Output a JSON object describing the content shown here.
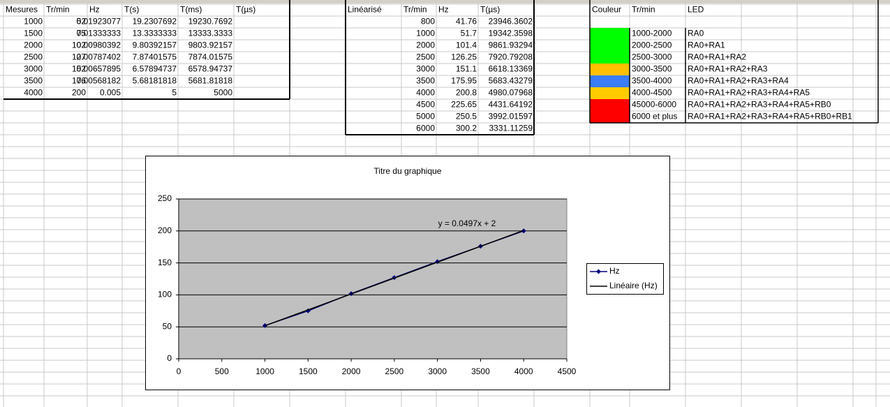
{
  "tables": [
    {
      "header": [
        "Mesures",
        "Tr/min",
        "Hz",
        "T(s)",
        "T(ms)",
        "T(µs)"
      ],
      "rows": [
        [
          "1000",
          "52",
          "0.01923077",
          "19.2307692",
          "19230.7692"
        ],
        [
          "1500",
          "75",
          "0.01333333",
          "13.3333333",
          "13333.3333"
        ],
        [
          "2000",
          "102",
          "0.00980392",
          "9.80392157",
          "9803.92157"
        ],
        [
          "2500",
          "127",
          "0.00787402",
          "7.87401575",
          "7874.01575"
        ],
        [
          "3000",
          "152",
          "0.00657895",
          "6.57894737",
          "6578.94737"
        ],
        [
          "3500",
          "176",
          "0.00568182",
          "5.68181818",
          "5681.81818"
        ],
        [
          "4000",
          "200",
          "0.005",
          "5",
          "5000"
        ]
      ]
    },
    {
      "header": [
        "Linéarisé",
        "Tr/min",
        "Hz",
        "T(µs)"
      ],
      "rows": [
        [
          "800",
          "41.76",
          "23946.3602"
        ],
        [
          "1000",
          "51.7",
          "19342.3598"
        ],
        [
          "2000",
          "101.4",
          "9861.93294"
        ],
        [
          "2500",
          "126.25",
          "7920.79208"
        ],
        [
          "3000",
          "151.1",
          "6618.13369"
        ],
        [
          "3500",
          "175.95",
          "5683.43279"
        ],
        [
          "4000",
          "200.8",
          "4980.07968"
        ],
        [
          "4500",
          "225.65",
          "4431.64192"
        ],
        [
          "5000",
          "250.5",
          "3992.01597"
        ],
        [
          "6000",
          "300.2",
          "3331.11259"
        ]
      ]
    }
  ],
  "color_table": {
    "header": [
      "Couleur",
      "Tr/min",
      "LED"
    ],
    "rows": [
      {
        "color": "#00ff00",
        "range": "1000-2000",
        "led": "RA0"
      },
      {
        "color": "#00ff00",
        "range": "2000-2500",
        "led": "RA0+RA1"
      },
      {
        "color": "#00ff00",
        "range": "2500-3000",
        "led": "RA0+RA1+RA2"
      },
      {
        "color": "#ffc000",
        "range": "3000-3500",
        "led": "RA0+RA1+RA2+RA3"
      },
      {
        "color": "#3a7df5",
        "range": "3500-4000",
        "led": "RA0+RA1+RA2+RA3+RA4"
      },
      {
        "color": "#ffcc00",
        "range": "4000-4500",
        "led": "RA0+RA1+RA2+RA3+RA4+RA5"
      },
      {
        "color": "#ff0000",
        "range": "45000-6000",
        "led": "RA0+RA1+RA2+RA3+RA4+RA5+RB0"
      },
      {
        "color": "#ff0000",
        "range": "6000 et plus",
        "led": "RA0+RA1+RA2+RA3+RA4+RA5+RB0+RB1"
      }
    ]
  },
  "chart_data": {
    "type": "line",
    "title": "Titre du graphique",
    "x": [
      1000,
      1500,
      2000,
      2500,
      3000,
      3500,
      4000
    ],
    "series": [
      {
        "name": "Hz",
        "color": "#000080",
        "values": [
          52,
          75,
          102,
          127,
          152,
          176,
          200
        ]
      },
      {
        "name": "Linéaire (Hz)",
        "color": "#000000",
        "x": [
          1000,
          4000
        ],
        "values": [
          51.7,
          200.8
        ]
      }
    ],
    "annotation": "y = 0.0497x + 2",
    "xlim": [
      0,
      4500
    ],
    "xticks": [
      0,
      500,
      1000,
      1500,
      2000,
      2500,
      3000,
      3500,
      4000,
      4500
    ],
    "ylim": [
      0,
      250
    ],
    "yticks": [
      0,
      50,
      100,
      150,
      200,
      250
    ],
    "grid": true,
    "legend": "right",
    "plot_background": "#c0c0c0"
  }
}
